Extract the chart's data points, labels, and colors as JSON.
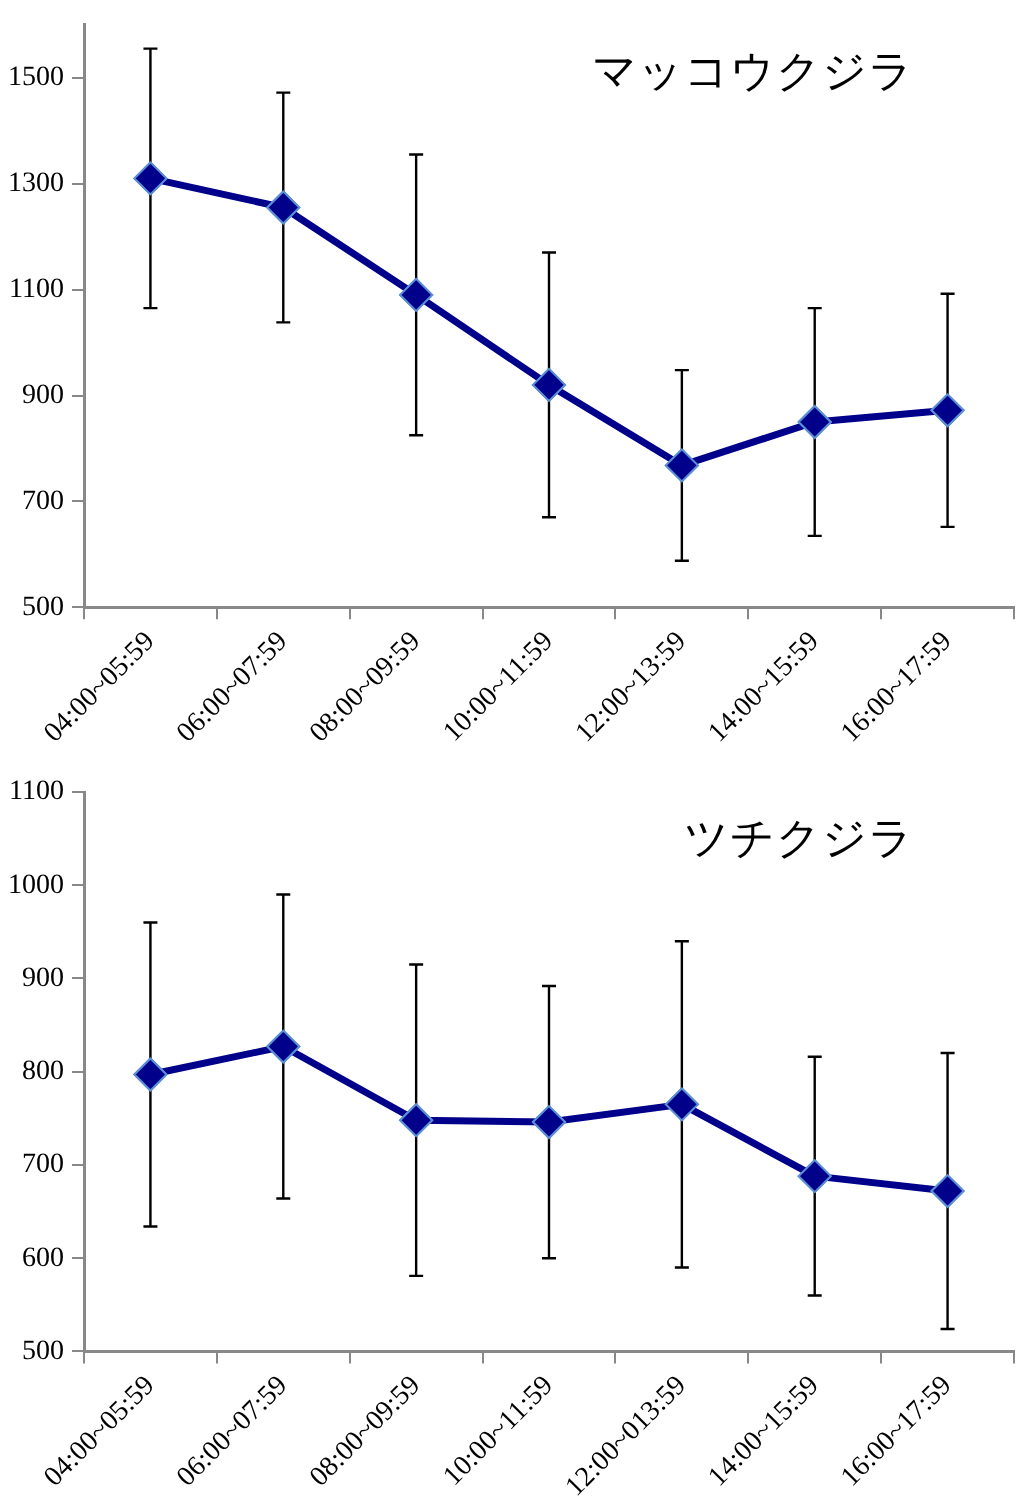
{
  "chart_data": [
    {
      "type": "line",
      "title": "マッコウクジラ",
      "categories": [
        "04:00~05:59",
        "06:00~07:59",
        "08:00~09:59",
        "10:00~11:59",
        "12:00~13:59",
        "14:00~15:59",
        "16:00~17:59"
      ],
      "series": [
        {
          "color": "#00008b",
          "values": [
            1310,
            1255,
            1090,
            920,
            768,
            850,
            872
          ],
          "errors": [
            245,
            217,
            265,
            250,
            180,
            215,
            220
          ]
        }
      ],
      "ylim": [
        500,
        1600
      ],
      "yticks": [
        500,
        700,
        900,
        1100,
        1300,
        1500
      ],
      "grid": false,
      "legend": false,
      "marker": "diamond",
      "line_style": "solid"
    },
    {
      "type": "line",
      "title": "ツチクジラ",
      "categories": [
        "04:00~05:59",
        "06:00~07:59",
        "08:00~09:59",
        "10:00~11:59",
        "12:00~013:59",
        "14:00~15:59",
        "16:00~17:59"
      ],
      "series": [
        {
          "color": "#00008b",
          "values": [
            797,
            827,
            748,
            746,
            765,
            688,
            672
          ],
          "errors": [
            163,
            163,
            167,
            146,
            175,
            128,
            148
          ]
        }
      ],
      "ylim": [
        500,
        1100
      ],
      "yticks": [
        500,
        600,
        700,
        800,
        900,
        1000,
        1100
      ],
      "grid": false,
      "legend": false,
      "marker": "diamond",
      "line_style": "solid"
    }
  ]
}
